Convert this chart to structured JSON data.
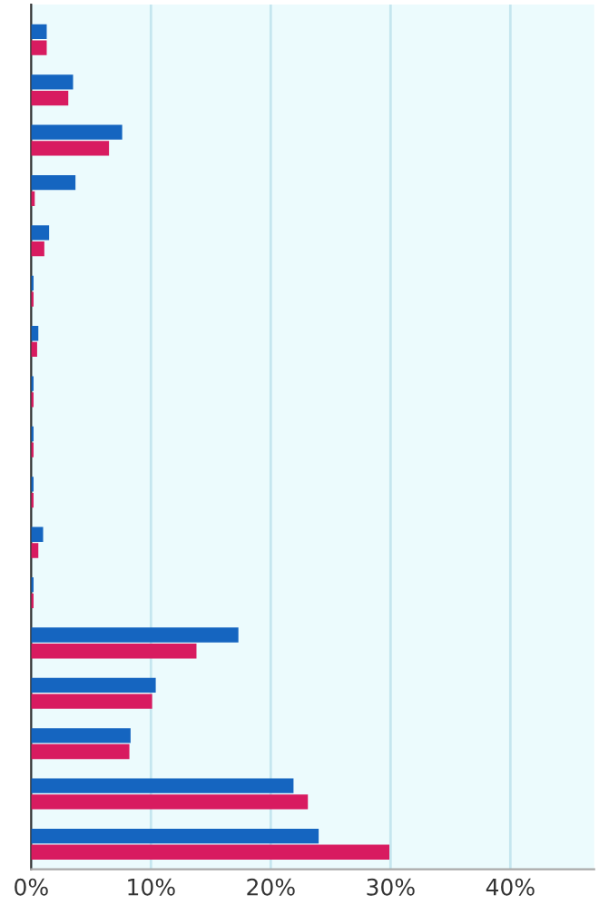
{
  "chart_data": {
    "type": "bar",
    "orientation": "horizontal",
    "categories": [
      null,
      null,
      null,
      null,
      null,
      null,
      null,
      null,
      null,
      null,
      null,
      null,
      null,
      null,
      null,
      null,
      null
    ],
    "series": [
      {
        "color": "#1565c0",
        "values": [
          1.3,
          3.5,
          7.6,
          3.7,
          1.5,
          0.2,
          0.6,
          0.2,
          0.2,
          0.2,
          1.0,
          0.2,
          17.3,
          10.4,
          8.3,
          21.9,
          24.0
        ]
      },
      {
        "color": "#d81b60",
        "values": [
          1.3,
          3.1,
          6.5,
          0.3,
          1.1,
          0.2,
          0.5,
          0.2,
          0.2,
          0.2,
          0.6,
          0.2,
          13.8,
          10.1,
          8.2,
          23.1,
          29.9
        ]
      }
    ],
    "xlim": [
      0,
      47
    ],
    "xticks": [
      {
        "value": 0,
        "label": "0%"
      },
      {
        "value": 10,
        "label": "10%"
      },
      {
        "value": 20,
        "label": "20%"
      },
      {
        "value": 30,
        "label": "30%"
      },
      {
        "value": 40,
        "label": "40%"
      }
    ],
    "grid": "x",
    "tick_labels": "x"
  }
}
